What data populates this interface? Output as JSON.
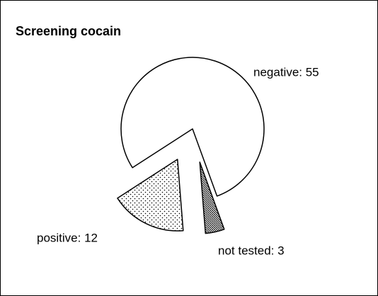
{
  "chart_data": {
    "type": "pie",
    "title": "Screening cocain",
    "values": [
      55,
      12,
      3
    ],
    "value_labels": [
      "negative: 55",
      "positive: 12",
      "not tested: 3"
    ]
  }
}
